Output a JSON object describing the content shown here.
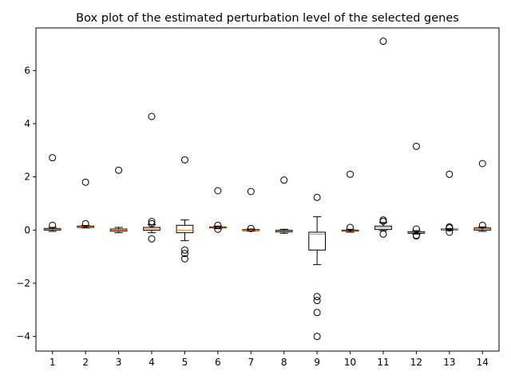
{
  "chart_data": {
    "type": "box",
    "title": "Box plot of the estimated perturbation level of the selected genes",
    "xlabel": "",
    "ylabel": "",
    "ylim": [
      -4.55,
      7.6
    ],
    "x_ticks": [
      "1",
      "2",
      "3",
      "4",
      "5",
      "6",
      "7",
      "8",
      "9",
      "10",
      "11",
      "12",
      "13",
      "14"
    ],
    "y_ticks": [
      -4,
      -2,
      0,
      2,
      4,
      6
    ],
    "y_tick_labels": [
      "−4",
      "−2",
      "0",
      "2",
      "4",
      "6"
    ],
    "grid": false,
    "colors": {
      "box": "#000000",
      "median": "#ff7f0e",
      "flier": "#000000"
    },
    "boxes": [
      {
        "label": "1",
        "whisker_low": -0.05,
        "q1": 0.0,
        "median": 0.03,
        "q3": 0.06,
        "whisker_high": 0.1,
        "outliers": [
          2.72,
          0.18
        ]
      },
      {
        "label": "2",
        "whisker_low": 0.08,
        "q1": 0.1,
        "median": 0.12,
        "q3": 0.15,
        "whisker_high": 0.17,
        "outliers": [
          1.8,
          0.24
        ]
      },
      {
        "label": "3",
        "whisker_low": -0.1,
        "q1": -0.04,
        "median": 0.0,
        "q3": 0.04,
        "whisker_high": 0.1,
        "outliers": [
          2.25
        ]
      },
      {
        "label": "4",
        "whisker_low": -0.1,
        "q1": -0.01,
        "median": 0.04,
        "q3": 0.1,
        "whisker_high": 0.2,
        "outliers": [
          4.27,
          0.32,
          0.24,
          -0.33
        ]
      },
      {
        "label": "5",
        "whisker_low": -0.4,
        "q1": -0.1,
        "median": 0.0,
        "q3": 0.18,
        "whisker_high": 0.38,
        "outliers": [
          2.64,
          -0.75,
          -0.88,
          -1.08
        ]
      },
      {
        "label": "6",
        "whisker_low": 0.05,
        "q1": 0.08,
        "median": 0.1,
        "q3": 0.12,
        "whisker_high": 0.15,
        "outliers": [
          1.48,
          0.18,
          0.03
        ]
      },
      {
        "label": "7",
        "whisker_low": -0.04,
        "q1": -0.02,
        "median": 0.0,
        "q3": 0.02,
        "whisker_high": 0.04,
        "outliers": [
          1.45,
          0.06
        ]
      },
      {
        "label": "8",
        "whisker_low": -0.12,
        "q1": -0.07,
        "median": -0.04,
        "q3": -0.01,
        "whisker_high": 0.03,
        "outliers": [
          1.88
        ]
      },
      {
        "label": "9",
        "whisker_low": -1.3,
        "q1": -0.75,
        "median": -0.15,
        "q3": -0.08,
        "whisker_high": 0.5,
        "outliers": [
          1.23,
          -2.5,
          -2.65,
          -3.1,
          -4.0
        ]
      },
      {
        "label": "10",
        "whisker_low": -0.08,
        "q1": -0.04,
        "median": -0.02,
        "q3": 0.0,
        "whisker_high": 0.03,
        "outliers": [
          2.1,
          0.1
        ]
      },
      {
        "label": "11",
        "whisker_low": -0.02,
        "q1": 0.02,
        "median": 0.09,
        "q3": 0.15,
        "whisker_high": 0.28,
        "outliers": [
          7.1,
          0.38,
          0.33,
          -0.15
        ]
      },
      {
        "label": "12",
        "whisker_low": -0.15,
        "q1": -0.12,
        "median": -0.09,
        "q3": -0.06,
        "whisker_high": -0.02,
        "outliers": [
          3.15,
          0.04,
          -0.2,
          -0.22
        ]
      },
      {
        "label": "13",
        "whisker_low": 0.0,
        "q1": 0.01,
        "median": 0.03,
        "q3": 0.04,
        "whisker_high": 0.06,
        "outliers": [
          2.1,
          0.12,
          0.08,
          -0.08
        ]
      },
      {
        "label": "14",
        "whisker_low": -0.05,
        "q1": 0.0,
        "median": 0.04,
        "q3": 0.08,
        "whisker_high": 0.12,
        "outliers": [
          2.5,
          0.18
        ]
      }
    ]
  }
}
